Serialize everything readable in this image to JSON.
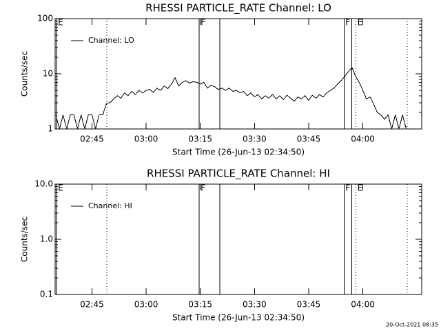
{
  "chart_data": [
    {
      "type": "line",
      "title": "RHESSI PARTICLE_RATE Channel: LO",
      "y_label": "Counts/sec",
      "x_label": "Start Time (26-Jun-13 02:34:50)",
      "log_y": true,
      "ylim": [
        1,
        100
      ],
      "yticks": [
        1,
        10,
        100
      ],
      "xlim": [
        154.8,
        256.3
      ],
      "xticks": [
        {
          "value": 165,
          "label": "02:45"
        },
        {
          "value": 180,
          "label": "03:00"
        },
        {
          "value": 195,
          "label": "03:15"
        },
        {
          "value": 210,
          "label": "03:30"
        },
        {
          "value": 225,
          "label": "03:45"
        },
        {
          "value": 240,
          "label": "04:00"
        }
      ],
      "x": [
        155,
        156,
        157,
        158,
        159,
        160,
        161,
        162,
        163,
        164,
        165,
        166,
        167,
        168,
        169,
        170,
        171,
        172,
        173,
        174,
        175,
        176,
        177,
        178,
        179,
        180,
        181,
        182,
        183,
        184,
        185,
        186,
        187,
        188,
        189,
        190,
        191,
        192,
        193,
        194,
        195,
        196,
        197,
        198,
        199,
        200,
        201,
        202,
        203,
        204,
        205,
        206,
        207,
        208,
        209,
        210,
        211,
        212,
        213,
        214,
        215,
        216,
        217,
        218,
        219,
        220,
        221,
        222,
        223,
        224,
        225,
        226,
        227,
        228,
        229,
        230,
        231,
        232,
        233,
        234,
        235,
        236,
        237,
        238,
        239,
        240,
        241,
        242,
        243,
        244,
        245,
        246,
        247,
        248,
        249,
        250,
        251,
        252
      ],
      "series": [
        {
          "name": "Channel: LO",
          "color": "#000000",
          "values": [
            1.8,
            1,
            1.8,
            1,
            1.8,
            1.8,
            1,
            1.8,
            1,
            1.8,
            1.8,
            1,
            1.8,
            1.8,
            2.9,
            3,
            3.5,
            4,
            3.6,
            4.5,
            4,
            4.8,
            4.2,
            5,
            4.5,
            5,
            5.2,
            4.6,
            5.5,
            5,
            6,
            5.4,
            6.5,
            8.5,
            6,
            7,
            7.5,
            6.8,
            7.2,
            7,
            6.5,
            7,
            5.5,
            6.2,
            5.8,
            5.2,
            5.5,
            5,
            5.5,
            4.8,
            5,
            4.5,
            4.8,
            4,
            4.5,
            3.8,
            4.2,
            3.5,
            4,
            3.6,
            4.2,
            3.5,
            4,
            3.4,
            4.1,
            3.6,
            3.2,
            3.8,
            3.5,
            4,
            3.3,
            4.1,
            3.6,
            4.2,
            3.8,
            4.5,
            5,
            5.5,
            6.5,
            7.5,
            9,
            11,
            13,
            9,
            7,
            5,
            3.5,
            3.8,
            2.8,
            2,
            1.8,
            1.5,
            1.8,
            1,
            1.8,
            1,
            1.8,
            1
          ]
        }
      ],
      "events": [
        {
          "x": 155.2,
          "style": "solid",
          "label": "E"
        },
        {
          "x": 169.1,
          "style": "dotted"
        },
        {
          "x": 194.7,
          "style": "solid",
          "label": "F"
        },
        {
          "x": 200.4,
          "style": "solid"
        },
        {
          "x": 234.8,
          "style": "solid",
          "label": "F"
        },
        {
          "x": 236.9,
          "style": "solid"
        },
        {
          "x": 238.1,
          "style": "dotted",
          "label": "E"
        },
        {
          "x": 252.3,
          "style": "dotted"
        }
      ]
    },
    {
      "type": "line",
      "title": "RHESSI PARTICLE_RATE Channel: HI",
      "y_label": "Counts/sec",
      "x_label": "Start Time (26-Jun-13 02:34:50)",
      "log_y": true,
      "ylim": [
        0.1,
        10
      ],
      "yticks": [
        0.1,
        {
          "value": 1,
          "label": "1.0"
        },
        {
          "value": 10,
          "label": "10.0"
        }
      ],
      "xlim": [
        154.8,
        256.3
      ],
      "xticks": [
        {
          "value": 165,
          "label": "02:45"
        },
        {
          "value": 180,
          "label": "03:00"
        },
        {
          "value": 195,
          "label": "03:15"
        },
        {
          "value": 210,
          "label": "03:30"
        },
        {
          "value": 225,
          "label": "03:45"
        },
        {
          "value": 240,
          "label": "04:00"
        }
      ],
      "x": [],
      "series": [
        {
          "name": "Channel: HI",
          "color": "#000000",
          "values": []
        }
      ],
      "events": [
        {
          "x": 155.2,
          "style": "solid",
          "label": "E"
        },
        {
          "x": 169.1,
          "style": "dotted"
        },
        {
          "x": 194.7,
          "style": "solid",
          "label": "F"
        },
        {
          "x": 200.4,
          "style": "solid"
        },
        {
          "x": 234.8,
          "style": "solid",
          "label": "F"
        },
        {
          "x": 236.9,
          "style": "solid"
        },
        {
          "x": 238.1,
          "style": "dotted",
          "label": "E"
        },
        {
          "x": 252.3,
          "style": "dotted"
        }
      ]
    }
  ],
  "footer": "20-Oct-2021 08:35"
}
